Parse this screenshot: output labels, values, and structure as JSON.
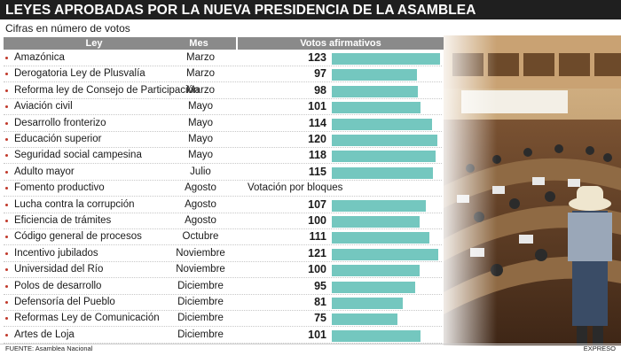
{
  "title": "LEYES APROBADAS POR LA NUEVA PRESIDENCIA DE LA ASAMBLEA",
  "subtitle": "Cifras en número de votos",
  "headers": {
    "law": "Ley",
    "month": "Mes",
    "votes": "Votos afirmativos"
  },
  "source": "FUENTE: Asamblea Nacional",
  "brand": "EXPRESO",
  "colors": {
    "bar": "#74c7bf",
    "header": "#8a8a8a",
    "bullet": "#c0392b"
  },
  "chart_data": {
    "type": "bar",
    "orientation": "horizontal",
    "xlim": [
      0,
      123
    ],
    "grid": false,
    "rows": [
      {
        "law": "Amazónica",
        "month": "Marzo",
        "votes": 123
      },
      {
        "law": "Derogatoria Ley de Plusvalía",
        "month": "Marzo",
        "votes": 97
      },
      {
        "law": "Reforma ley de Consejo de Participación",
        "month": "Marzo",
        "votes": 98
      },
      {
        "law": "Aviación civil",
        "month": "Mayo",
        "votes": 101
      },
      {
        "law": "Desarrollo fronterizo",
        "month": "Mayo",
        "votes": 114
      },
      {
        "law": "Educación superior",
        "month": "Mayo",
        "votes": 120
      },
      {
        "law": "Seguridad social campesina",
        "month": "Mayo",
        "votes": 118
      },
      {
        "law": "Adulto mayor",
        "month": "Julio",
        "votes": 115
      },
      {
        "law": "Fomento productivo",
        "month": "Agosto",
        "votes": null,
        "note": "Votación por bloques"
      },
      {
        "law": "Lucha contra la corrupción",
        "month": "Agosto",
        "votes": 107
      },
      {
        "law": "Eficiencia de trámites",
        "month": "Agosto",
        "votes": 100
      },
      {
        "law": "Código general de procesos",
        "month": "Octubre",
        "votes": 111
      },
      {
        "law": "Incentivo jubilados",
        "month": "Noviembre",
        "votes": 121
      },
      {
        "law": "Universidad del Río",
        "month": "Noviembre",
        "votes": 100
      },
      {
        "law": "Polos de desarrollo",
        "month": "Diciembre",
        "votes": 95
      },
      {
        "law": "Defensoría del Pueblo",
        "month": "Diciembre",
        "votes": 81
      },
      {
        "law": "Reformas Ley de Comunicación",
        "month": "Diciembre",
        "votes": 75
      },
      {
        "law": "Artes de Loja",
        "month": "Diciembre",
        "votes": 101
      }
    ]
  }
}
